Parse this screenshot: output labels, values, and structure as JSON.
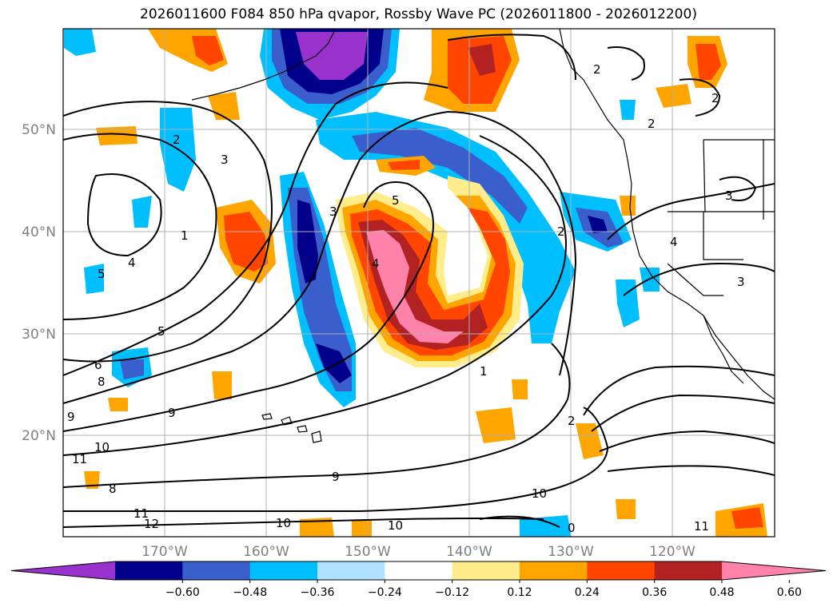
{
  "title": "2026011600 F084 850 hPa qvapor, Rossby Wave PC (2026011800 - 2026012200)",
  "lat_labels": [
    "50°N",
    "40°N",
    "30°N",
    "20°N"
  ],
  "lon_labels": [
    "170°W",
    "160°W",
    "150°W",
    "140°W",
    "130°W",
    "120°W"
  ],
  "colorbar": {
    "colors": [
      "#9932CC",
      "#00008B",
      "#3A5FCD",
      "#00BFFF",
      "#B0E2FF",
      "#FFFFFF",
      "#FFEC8B",
      "#FFA500",
      "#FF4500",
      "#B22222",
      "#FF82AB"
    ],
    "tick_labels": [
      "−0.60",
      "−0.48",
      "−0.36",
      "−0.24",
      "−0.12",
      "0.12",
      "0.24",
      "0.36",
      "0.48",
      "0.60"
    ],
    "extend": "both"
  },
  "contour_labels": [
    "2",
    "2",
    "2",
    "3",
    "3",
    "1",
    "5",
    "4",
    "5",
    "6",
    "8",
    "9",
    "9",
    "11",
    "10",
    "8",
    "11",
    "12",
    "10",
    "10",
    "9",
    "10",
    "11",
    "0",
    "5",
    "3",
    "4",
    "2",
    "1",
    "2",
    "2",
    "4",
    "3"
  ]
}
